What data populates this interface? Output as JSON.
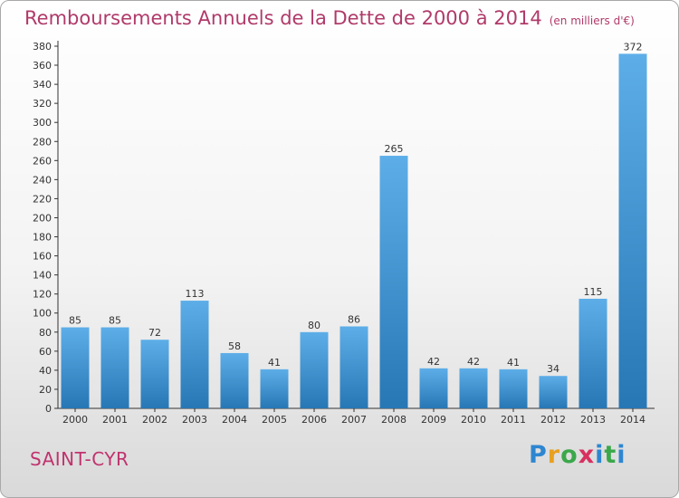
{
  "header": {
    "title": "Remboursements Annuels de la Dette de 2000 à 2014",
    "unit": "(en milliers d'€)"
  },
  "footer": {
    "city": "SAINT-CYR",
    "logo": [
      "P",
      "r",
      "o",
      "x",
      "i",
      "t",
      "i"
    ]
  },
  "colors": {
    "title": "#b03a6a",
    "bar_light": "#5daee8",
    "bar_dark": "#2777b5",
    "logo": [
      "#2e86d0",
      "#e8a020",
      "#3aa84a",
      "#d83060",
      "#2e86d0",
      "#3aa84a",
      "#2e86d0"
    ]
  },
  "chart_data": {
    "type": "bar",
    "title": "Remboursements Annuels de la Dette de 2000 à 2014",
    "categories": [
      "2000",
      "2001",
      "2002",
      "2003",
      "2004",
      "2005",
      "2006",
      "2007",
      "2008",
      "2009",
      "2010",
      "2011",
      "2012",
      "2013",
      "2014"
    ],
    "values": [
      85,
      85,
      72,
      113,
      58,
      41,
      80,
      86,
      265,
      42,
      42,
      41,
      34,
      115,
      372
    ],
    "ylim": [
      0,
      380
    ],
    "yticks": [
      0,
      20,
      40,
      60,
      80,
      100,
      120,
      140,
      160,
      180,
      200,
      220,
      240,
      260,
      280,
      300,
      320,
      340,
      360,
      380
    ],
    "grid": false,
    "data_labels": true
  }
}
